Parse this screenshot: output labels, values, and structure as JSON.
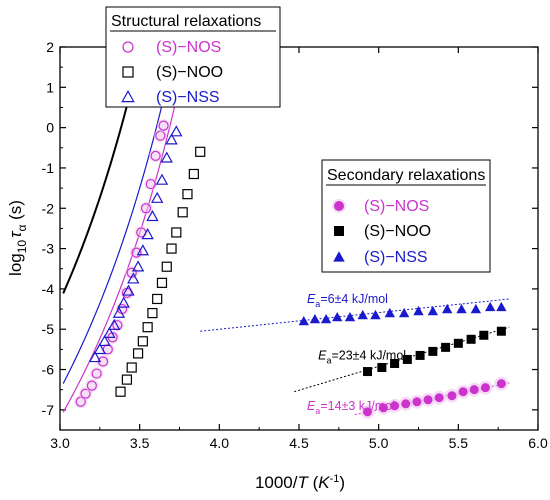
{
  "colors": {
    "nos": "#cc33cc",
    "nos_light": "#f0c4f0",
    "noo": "#000000",
    "nss": "#1a1acc",
    "nss_light": "#9999ee"
  },
  "chart_data": {
    "type": "scatter",
    "xlabel": {
      "main": "1000/",
      "var": "T",
      "unit_open": " (",
      "unit_var": "K",
      "unit_sup": "-1",
      "unit_close": ")"
    },
    "ylabel": {
      "main": "log",
      "sub": "10",
      "tau": "τ",
      "tau_sub": "α",
      "unit": " (s)"
    },
    "xlim": [
      3.0,
      6.0
    ],
    "ylim": [
      -7.5,
      2.0
    ],
    "xticks": [
      "3.0",
      "3.5",
      "4.0",
      "4.5",
      "5.0",
      "5.5",
      "6.0"
    ],
    "yticks": [
      "-7",
      "-6",
      "-5",
      "-4",
      "-3",
      "-2",
      "-1",
      "0",
      "1",
      "2"
    ],
    "grid": false,
    "structural": {
      "legend_title": "Structural relaxations",
      "legend_position": "top-left",
      "series": [
        {
          "key": "nos",
          "name": "(S)−NOS",
          "marker": "circle-open",
          "x": [
            3.13,
            3.16,
            3.2,
            3.23,
            3.27,
            3.3,
            3.33,
            3.36,
            3.39,
            3.42,
            3.45,
            3.48,
            3.51,
            3.54,
            3.57,
            3.6,
            3.63,
            3.65
          ],
          "y": [
            -6.8,
            -6.6,
            -6.4,
            -6.1,
            -5.8,
            -5.5,
            -5.2,
            -4.9,
            -4.5,
            -4.1,
            -3.6,
            -3.1,
            -2.6,
            -2.0,
            -1.4,
            -0.7,
            -0.2,
            0.05
          ],
          "fit": {
            "tau0": -15.45,
            "B": 1100,
            "T0": 200
          }
        },
        {
          "key": "noo",
          "name": "(S)−NOO",
          "marker": "square-open",
          "x": [
            3.38,
            3.42,
            3.45,
            3.49,
            3.52,
            3.55,
            3.58,
            3.61,
            3.64,
            3.67,
            3.7,
            3.73,
            3.77,
            3.8,
            3.84,
            3.88
          ],
          "y": [
            -6.55,
            -6.25,
            -5.95,
            -5.6,
            -5.3,
            -4.95,
            -4.6,
            -4.25,
            -3.85,
            -3.45,
            -3.0,
            -2.6,
            -2.1,
            -1.65,
            -1.15,
            -0.6
          ],
          "fit": {
            "tau0": -14.02,
            "B": 1200,
            "T0": 210
          }
        },
        {
          "key": "nss",
          "name": "(S)−NSS",
          "marker": "triangle-open",
          "x": [
            3.22,
            3.25,
            3.28,
            3.31,
            3.34,
            3.37,
            3.4,
            3.43,
            3.46,
            3.49,
            3.52,
            3.55,
            3.58,
            3.61,
            3.64,
            3.67,
            3.7,
            3.73
          ],
          "y": [
            -5.7,
            -5.5,
            -5.3,
            -5.1,
            -4.9,
            -4.6,
            -4.35,
            -4.05,
            -3.75,
            -3.45,
            -3.05,
            -2.65,
            -2.2,
            -1.75,
            -1.3,
            -0.75,
            -0.3,
            -0.1
          ],
          "fit": {
            "tau0": -15.5,
            "B": 1200,
            "T0": 200
          }
        }
      ]
    },
    "secondary": {
      "legend_title": "Secondary relaxations",
      "legend_position": "center-right",
      "series": [
        {
          "key": "nos",
          "name": "(S)−NOS",
          "marker": "circle-filled",
          "x": [
            4.93,
            5.03,
            5.1,
            5.17,
            5.24,
            5.31,
            5.38,
            5.46,
            5.53,
            5.6,
            5.67,
            5.77
          ],
          "y": [
            -7.05,
            -6.95,
            -6.9,
            -6.85,
            -6.8,
            -6.75,
            -6.7,
            -6.65,
            -6.55,
            -6.5,
            -6.45,
            -6.35
          ],
          "fit": {
            "x": [
              4.85,
              5.82
            ],
            "y": [
              -7.12,
              -6.33
            ]
          },
          "annotation": {
            "E": "E",
            "sub": "a",
            "text": "=14±3 kJ/mol",
            "x": 4.55,
            "y": -7.0
          }
        },
        {
          "key": "noo",
          "name": "(S)−NOO",
          "marker": "square-filled",
          "x": [
            4.93,
            5.02,
            5.1,
            5.18,
            5.26,
            5.34,
            5.42,
            5.5,
            5.58,
            5.66,
            5.77
          ],
          "y": [
            -6.05,
            -5.95,
            -5.85,
            -5.75,
            -5.65,
            -5.55,
            -5.45,
            -5.35,
            -5.25,
            -5.15,
            -5.05
          ],
          "fit": {
            "x": [
              4.47,
              5.82
            ],
            "y": [
              -6.55,
              -4.95
            ]
          },
          "annotation": {
            "E": "E",
            "sub": "a",
            "text": "=23±4 kJ/mol",
            "x": 4.62,
            "y": -5.75
          }
        },
        {
          "key": "nss",
          "name": "(S)−NSS",
          "marker": "triangle-filled",
          "x": [
            4.53,
            4.6,
            4.67,
            4.74,
            4.82,
            4.9,
            4.98,
            5.07,
            5.16,
            5.25,
            5.34,
            5.43,
            5.52,
            5.61,
            5.7,
            5.77
          ],
          "y": [
            -4.8,
            -4.75,
            -4.75,
            -4.7,
            -4.7,
            -4.65,
            -4.65,
            -4.6,
            -4.6,
            -4.55,
            -4.55,
            -4.5,
            -4.5,
            -4.5,
            -4.45,
            -4.45
          ],
          "fit": {
            "x": [
              3.88,
              5.82
            ],
            "y": [
              -5.05,
              -4.25
            ]
          },
          "annotation": {
            "E": "E",
            "sub": "a",
            "text": "=6±4 kJ/mol",
            "x": 4.55,
            "y": -4.35
          }
        }
      ]
    }
  }
}
